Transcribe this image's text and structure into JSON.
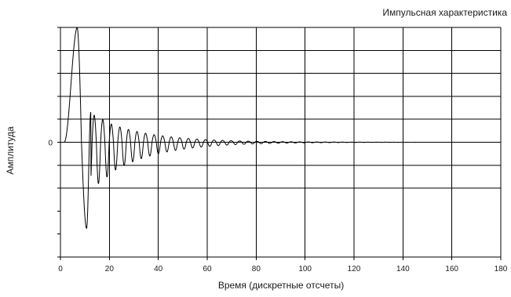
{
  "chart_data": {
    "type": "line",
    "title": "Импульсная характеристика",
    "xlabel": "Время (дискретные отсчеты)",
    "ylabel": "Амплитуда",
    "xlim": [
      0,
      180
    ],
    "ylim": [
      -1,
      1
    ],
    "x_ticks": [
      0,
      20,
      40,
      60,
      80,
      100,
      120,
      140,
      160,
      180
    ],
    "x_tick_labels": [
      "0",
      "20",
      "40",
      "60",
      "80",
      "100",
      "120",
      "140",
      "160",
      "180"
    ],
    "y_tick_values": [
      -1,
      -0.8,
      -0.6,
      -0.4,
      -0.2,
      0,
      0.2,
      0.4,
      0.6,
      0.8,
      1
    ],
    "y_labeled_ticks": [
      {
        "value": 0,
        "label": "0"
      }
    ],
    "y_grid_values": [
      -0.4,
      -0.2,
      0,
      0.2,
      0.4,
      0.6,
      0.8,
      1
    ],
    "grid": true,
    "legend": "none",
    "series": [
      {
        "color": "#000000",
        "envelope_points": [
          {
            "x": 6.8,
            "y": 1.0
          },
          {
            "x": 10.7,
            "y": -0.75
          },
          {
            "x": 14.0,
            "y": 0.26
          },
          {
            "x": 17.5,
            "y": -0.33
          },
          {
            "x": 21.0,
            "y": 0.17
          },
          {
            "x": 24.5,
            "y": -0.27
          },
          {
            "x": 28.0,
            "y": 0.12
          },
          {
            "x": 31.5,
            "y": -0.2
          },
          {
            "x": 45.0,
            "y": 0.06
          },
          {
            "x": 60.0,
            "y": 0.04
          },
          {
            "x": 80.0,
            "y": 0.01
          },
          {
            "x": 100.0,
            "y": 0.003
          },
          {
            "x": 146.0,
            "y": 0.0
          }
        ],
        "x_start": 0,
        "x_end": 146,
        "onset": 1.5,
        "first_peak_x": 6.8,
        "period": 3.5,
        "decay_rate": 0.05
      }
    ]
  }
}
